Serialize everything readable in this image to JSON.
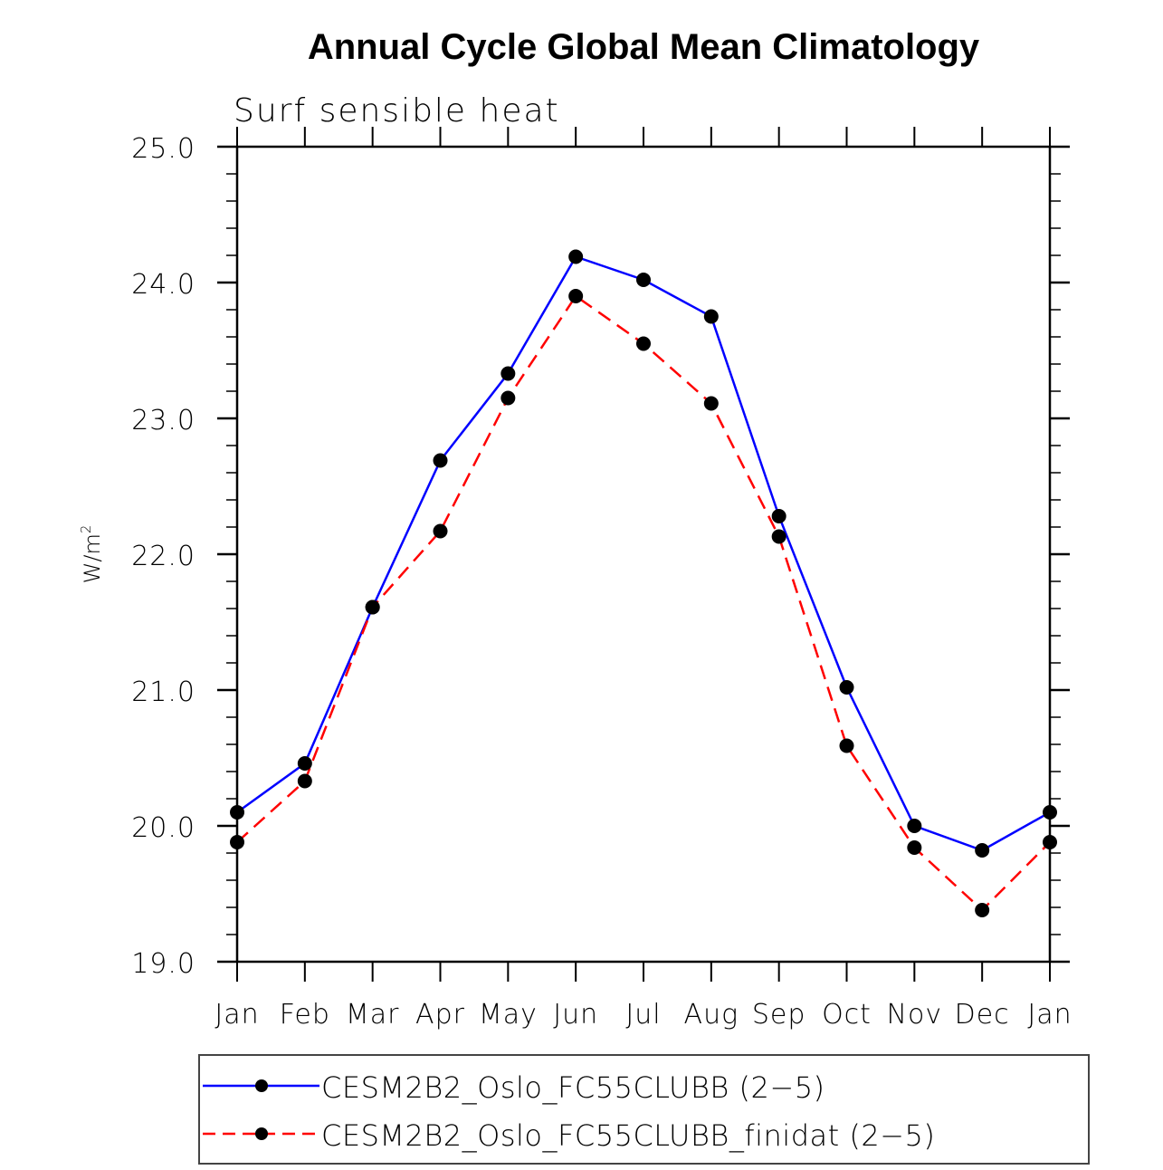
{
  "chart_data": {
    "type": "line",
    "title": "Annual Cycle Global Mean Climatology",
    "subtitle": "Surf sensible heat",
    "xlabel": "",
    "ylabel": "W/m",
    "ylabel_superscript": "2",
    "categories": [
      "Jan",
      "Feb",
      "Mar",
      "Apr",
      "May",
      "Jun",
      "Jul",
      "Aug",
      "Sep",
      "Oct",
      "Nov",
      "Dec",
      "Jan"
    ],
    "ylim": [
      19.0,
      25.0
    ],
    "yticks": [
      "19.0",
      "20.0",
      "21.0",
      "22.0",
      "23.0",
      "24.0",
      "25.0"
    ],
    "ytick_values": [
      19,
      20,
      21,
      22,
      23,
      24,
      25
    ],
    "yminor_step": 0.2,
    "grid": false,
    "legend_position": "bottom",
    "series": [
      {
        "name": "CESM2B2_Oslo_FC55CLUBB (2−5)",
        "color": "#0000ff",
        "line_style": "solid",
        "marker": "filled-circle",
        "marker_color": "#000000",
        "values": [
          20.1,
          20.46,
          21.61,
          22.69,
          23.33,
          24.19,
          24.02,
          23.75,
          22.28,
          21.02,
          20.0,
          19.82,
          20.1
        ]
      },
      {
        "name": "CESM2B2_Oslo_FC55CLUBB_finidat (2−5)",
        "color": "#ff0000",
        "line_style": "dashed",
        "marker": "filled-circle",
        "marker_color": "#000000",
        "values": [
          19.88,
          20.33,
          21.61,
          22.17,
          23.15,
          23.9,
          23.55,
          23.11,
          22.13,
          20.59,
          19.84,
          19.38,
          19.88
        ]
      }
    ]
  }
}
